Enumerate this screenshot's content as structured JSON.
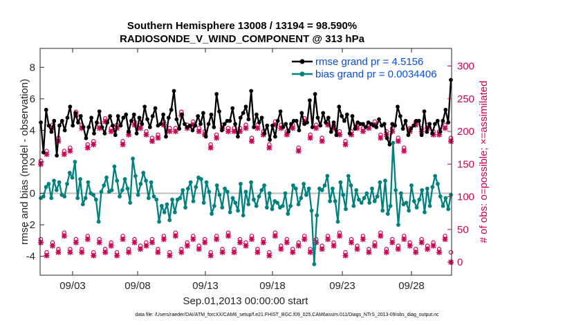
{
  "chart_data": {
    "type": "line",
    "title_line1": "Southern Hemisphere 13008 / 13194 = 98.590%",
    "title_line2": "RADIOSONDE_V_WIND_COMPONENT @ 313 hPa",
    "xlabel": "Sep.01,2013 00:00:00 start",
    "ylabel": "rmse and bias (model - observation)",
    "ylabel_right": "# of obs: o=possible; ×=assimilated",
    "x_ticks": [
      "09/03",
      "09/08",
      "09/13",
      "09/18",
      "09/23",
      "09/28"
    ],
    "y_ticks": [
      "-4",
      "-2",
      "0",
      "2",
      "4",
      "6",
      "8"
    ],
    "y_ticks_right": [
      "0",
      "50",
      "100",
      "150",
      "200",
      "250",
      "300"
    ],
    "ylim": [
      -5.2,
      9.2
    ],
    "ylim_right": [
      -20,
      327
    ],
    "footnote": "data file: /Users/raeder/DAI/ATM_forcXX/CAM6_setup/f.e21.FHIST_BGC.f09_025.CAM6assim.011/Diags_NTrS_2013-09/obs_diag_output.nc",
    "series": [
      {
        "name": "rmse grand pr = 4.5156",
        "color": "#000000",
        "axis": "left",
        "values": [
          4.5,
          2.6,
          5.3,
          4.3,
          3.9,
          4.6,
          2.4,
          4.3,
          4.6,
          4.0,
          4.8,
          5.5,
          4.3,
          5.1,
          4.5,
          4.9,
          4.2,
          3.5,
          4.2,
          4.8,
          3.8,
          4.5,
          5.2,
          4.2,
          3.8,
          4.5,
          4.9,
          4.3,
          3.7,
          4.9,
          4.3,
          4.8,
          5.0,
          3.9,
          4.6,
          5.0,
          3.8,
          4.8,
          4.4,
          5.5,
          4.7,
          4.2,
          4.9,
          5.4,
          4.3,
          4.4,
          5.0,
          3.6,
          4.8,
          5.3,
          6.5,
          4.7,
          4.1,
          5.0,
          4.4,
          4.2,
          4.3,
          4.0,
          4.3,
          4.9,
          4.4,
          5.1,
          3.6,
          4.4,
          5.0,
          4.2,
          6.3,
          5.2,
          4.0,
          4.4,
          4.6,
          4.6,
          5.4,
          4.4,
          3.6,
          4.8,
          5.1,
          5.5,
          4.7,
          6.5,
          4.2,
          5.0,
          4.5,
          4.8,
          3.8,
          4.3,
          3.4,
          4.3,
          3.6,
          4.6,
          5.2,
          4.2,
          4.4,
          3.9,
          4.4,
          4.6,
          4.6,
          4.0,
          5.1,
          4.4,
          4.5,
          5.9,
          4.2,
          6.3,
          4.8,
          4.3,
          5.1,
          4.5,
          4.8,
          3.9,
          4.5,
          3.7,
          5.5,
          4.9,
          4.6,
          5.0,
          3.8,
          4.9,
          4.1,
          4.5,
          4.4,
          4.4,
          4.2,
          4.5,
          4.4,
          4.3,
          4.2,
          4.7,
          4.3,
          4.4,
          3.5,
          3.1,
          4.4,
          4.3,
          5.5,
          4.9,
          4.1,
          4.6,
          3.7,
          4.1,
          4.3,
          4.6,
          4.6,
          3.7,
          5.2,
          3.9,
          4.4,
          3.8,
          4.4,
          4.6,
          3.9,
          4.6,
          5.3,
          4.5,
          7.2
        ]
      },
      {
        "name": "bias grand pr = 0.0034406",
        "color": "#00807f",
        "axis": "left",
        "values": [
          -0.3,
          -0.2,
          0.4,
          0.6,
          -0.3,
          0.8,
          0.2,
          0.7,
          -0.1,
          -0.2,
          0.6,
          1.3,
          1.0,
          2.0,
          -0.3,
          0.9,
          -0.7,
          -0.3,
          0.7,
          0.0,
          -0.1,
          -0.4,
          -1.8,
          0.1,
          0.5,
          1.0,
          0.1,
          0.2,
          1.7,
          0.8,
          -0.2,
          0.2,
          0.9,
          0.3,
          -0.6,
          2.2,
          1.1,
          -0.1,
          0.6,
          1.3,
          0.8,
          -0.3,
          0.7,
          -0.2,
          -0.4,
          -1.8,
          -0.8,
          -1.2,
          -0.7,
          -1.7,
          -0.4,
          -1.2,
          -0.4,
          -0.3,
          0.2,
          -0.9,
          0.3,
          0.7,
          -0.5,
          0.4,
          1.0,
          0.9,
          -0.6,
          0.7,
          0.1,
          -1.3,
          -0.8,
          0.5,
          -0.1,
          -0.9,
          0.3,
          0.1,
          -1.2,
          -0.3,
          -0.6,
          -1.1,
          0.6,
          -1.4,
          0.1,
          -0.7,
          0.7,
          -0.4,
          -0.8,
          -0.2,
          0.2,
          0.5,
          -0.9,
          0.0,
          -1.0,
          -0.5,
          -0.6,
          -0.9,
          -0.8,
          0.0,
          -1.3,
          -0.8,
          0.5,
          0.3,
          -0.7,
          -0.3,
          0.6,
          -0.1,
          0.3,
          -1.1,
          -4.5,
          -1.4,
          0.3,
          0.2,
          0.5,
          1.1,
          -0.5,
          0.3,
          -0.5,
          -1.8,
          0.7,
          -0.1,
          -1.0,
          1.1,
          0.5,
          -0.8,
          0.2,
          -0.4,
          -0.6,
          -0.3,
          0.0,
          -0.6,
          0.3,
          -0.5,
          -0.2,
          0.7,
          -1.1,
          0.8,
          -1.3,
          -0.8,
          3.2,
          0.2,
          -2.0,
          0.0,
          -0.7,
          -0.6,
          -1.1,
          0.5,
          -0.5,
          -0.9,
          -0.4,
          0.2,
          -1.2,
          0.3,
          -0.8,
          0.4,
          1.1,
          0.6,
          -0.2,
          -0.8,
          -0.3,
          -1.0,
          -0.1
        ]
      }
    ],
    "obs_counts": {
      "possible_high": [
        155,
        170,
        210,
        190,
        170,
        175,
        230,
        210,
        180,
        185,
        210,
        220,
        205,
        210,
        185,
        200,
        215,
        210,
        200,
        190,
        195,
        215,
        205,
        205,
        230,
        210,
        215,
        205,
        200,
        180,
        195,
        210,
        205,
        205,
        205,
        210,
        190,
        210,
        200,
        180,
        215,
        210,
        200,
        210,
        175,
        220,
        195,
        210,
        190,
        215,
        210,
        200,
        185,
        200,
        210,
        205,
        210,
        215,
        195,
        200,
        205,
        190,
        175,
        205,
        215,
        205,
        210,
        200,
        200,
        210,
        190
      ],
      "assimilated_high": [
        150,
        165,
        205,
        185,
        165,
        170,
        225,
        205,
        175,
        180,
        205,
        215,
        200,
        205,
        180,
        195,
        210,
        205,
        195,
        185,
        190,
        210,
        200,
        200,
        225,
        205,
        210,
        200,
        195,
        175,
        190,
        205,
        200,
        200,
        200,
        205,
        185,
        205,
        195,
        175,
        210,
        205,
        195,
        205,
        170,
        215,
        190,
        205,
        185,
        210,
        205,
        195,
        180,
        195,
        205,
        200,
        205,
        210,
        190,
        195,
        200,
        185,
        170,
        200,
        210,
        200,
        205,
        195,
        195,
        205,
        185
      ],
      "possible_low": [
        35,
        15,
        30,
        20,
        45,
        20,
        35,
        20,
        40,
        15,
        35,
        20,
        30,
        15,
        40,
        20,
        35,
        25,
        30,
        35,
        20,
        40,
        15,
        45,
        20,
        30,
        40,
        25,
        35,
        15,
        40,
        20,
        45,
        20,
        35,
        30,
        40,
        20,
        35,
        15,
        45,
        25,
        35,
        20,
        30,
        40,
        20,
        35,
        25,
        40,
        30,
        45,
        15,
        35,
        25,
        40,
        20,
        30,
        45,
        20,
        35,
        25,
        40,
        30,
        20,
        35,
        25,
        30,
        20,
        40,
        15
      ],
      "assimilated_low": [
        30,
        10,
        25,
        15,
        40,
        15,
        30,
        15,
        35,
        10,
        30,
        15,
        25,
        10,
        35,
        15,
        30,
        20,
        25,
        30,
        15,
        35,
        10,
        40,
        15,
        25,
        35,
        20,
        30,
        10,
        35,
        15,
        40,
        15,
        30,
        25,
        35,
        15,
        30,
        10,
        40,
        20,
        30,
        15,
        25,
        35,
        15,
        30,
        20,
        35,
        25,
        40,
        10,
        30,
        20,
        35,
        15,
        25,
        40,
        15,
        30,
        20,
        35,
        25,
        15,
        30,
        20,
        25,
        15,
        35,
        0
      ]
    }
  },
  "colors": {
    "rmse": "#000000",
    "bias": "#00807f",
    "obs": "#cc0055",
    "legend_text": "#0a4fd8",
    "zero_line": "#bfbfbf"
  }
}
